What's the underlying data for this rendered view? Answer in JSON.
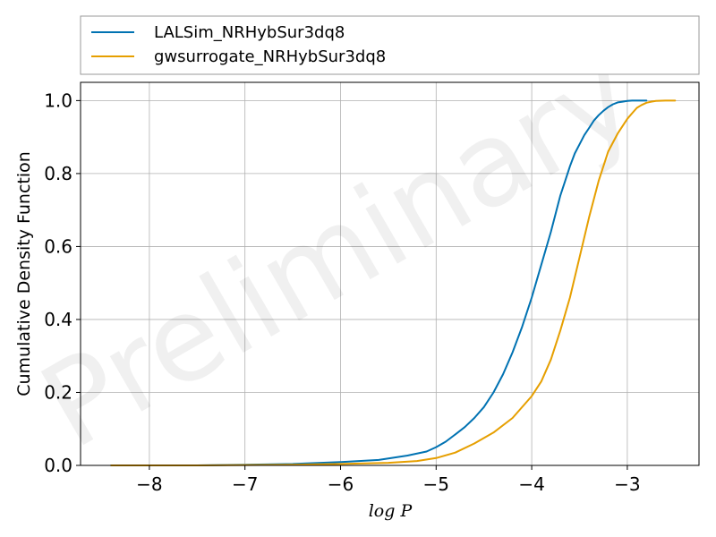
{
  "chart_data": {
    "type": "line",
    "title": "",
    "xlabel": "log P",
    "ylabel": "Cumulative Density Function",
    "xlim": [
      -8.72,
      -2.25
    ],
    "ylim": [
      0.0,
      1.05
    ],
    "xticks": [
      -8,
      -7,
      -6,
      -5,
      -4,
      -3
    ],
    "xtick_labels": [
      "−8",
      "−7",
      "−6",
      "−5",
      "−4",
      "−3"
    ],
    "yticks": [
      0.0,
      0.2,
      0.4,
      0.6,
      0.8,
      1.0
    ],
    "ytick_labels": [
      "0.0",
      "0.2",
      "0.4",
      "0.6",
      "0.8",
      "1.0"
    ],
    "grid": true,
    "legend_position": "top, above plot",
    "watermark": "Preliminary",
    "series": [
      {
        "name": "LALSim_NRHybSur3dq8",
        "color": "#0072b2",
        "x": [
          -8.4,
          -7.5,
          -7.0,
          -6.5,
          -6.0,
          -5.6,
          -5.3,
          -5.1,
          -5.0,
          -4.9,
          -4.8,
          -4.7,
          -4.6,
          -4.5,
          -4.4,
          -4.3,
          -4.2,
          -4.1,
          -4.0,
          -3.9,
          -3.8,
          -3.75,
          -3.7,
          -3.65,
          -3.6,
          -3.55,
          -3.5,
          -3.45,
          -3.4,
          -3.35,
          -3.3,
          -3.25,
          -3.2,
          -3.15,
          -3.1,
          -3.05,
          -3.0,
          -2.95,
          -2.9,
          -2.8
        ],
        "y": [
          0.0,
          0.0,
          0.002,
          0.004,
          0.009,
          0.015,
          0.027,
          0.038,
          0.05,
          0.065,
          0.085,
          0.105,
          0.13,
          0.16,
          0.2,
          0.25,
          0.31,
          0.38,
          0.46,
          0.55,
          0.64,
          0.69,
          0.74,
          0.78,
          0.82,
          0.855,
          0.88,
          0.905,
          0.925,
          0.945,
          0.96,
          0.972,
          0.982,
          0.99,
          0.995,
          0.997,
          0.999,
          1.0,
          1.0,
          1.0
        ]
      },
      {
        "name": "gwsurrogate_NRHybSur3dq8",
        "color": "#e69f00",
        "x": [
          -8.4,
          -7.5,
          -7.0,
          -6.5,
          -6.0,
          -5.5,
          -5.2,
          -5.0,
          -4.8,
          -4.6,
          -4.4,
          -4.2,
          -4.0,
          -3.9,
          -3.8,
          -3.7,
          -3.6,
          -3.5,
          -3.4,
          -3.3,
          -3.2,
          -3.1,
          -3.0,
          -2.95,
          -2.9,
          -2.85,
          -2.8,
          -2.75,
          -2.7,
          -2.6,
          -2.5
        ],
        "y": [
          0.0,
          0.0,
          0.001,
          0.002,
          0.004,
          0.007,
          0.012,
          0.02,
          0.035,
          0.06,
          0.09,
          0.13,
          0.19,
          0.23,
          0.29,
          0.37,
          0.46,
          0.57,
          0.68,
          0.78,
          0.86,
          0.91,
          0.95,
          0.965,
          0.98,
          0.988,
          0.994,
          0.997,
          0.999,
          1.0,
          1.0
        ]
      }
    ]
  }
}
